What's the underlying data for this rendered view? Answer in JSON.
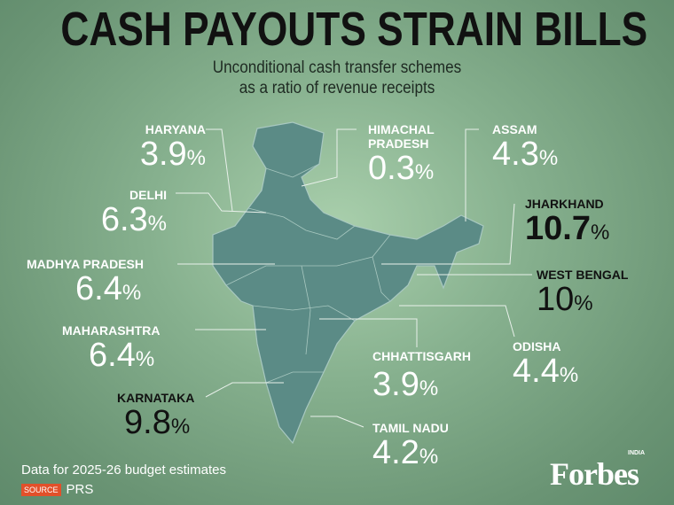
{
  "title": "CASH PAYOUTS STRAIN BILLS",
  "subtitle_line1": "Unconditional cash transfer schemes",
  "subtitle_line2": "as a ratio of revenue receipts",
  "states": [
    {
      "name": "HARYANA",
      "value": "3.9",
      "unit": "%"
    },
    {
      "name": "DELHI",
      "value": "6.3",
      "unit": "%"
    },
    {
      "name": "MADHYA PRADESH",
      "value": "6.4",
      "unit": "%"
    },
    {
      "name": "MAHARASHTRA",
      "value": "6.4",
      "unit": "%"
    },
    {
      "name": "KARNATAKA",
      "value": "9.8",
      "unit": "%"
    },
    {
      "name": "HIMACHAL PRADESH",
      "value": "0.3",
      "unit": "%"
    },
    {
      "name": "ASSAM",
      "value": "4.3",
      "unit": "%"
    },
    {
      "name": "JHARKHAND",
      "value": "10.7",
      "unit": "%"
    },
    {
      "name": "WEST BENGAL",
      "value": "10",
      "unit": "%"
    },
    {
      "name": "ODISHA",
      "value": "4.4",
      "unit": "%"
    },
    {
      "name": "CHHATTISGARH",
      "value": "3.9",
      "unit": "%"
    },
    {
      "name": "TAMIL NADU",
      "value": "4.2",
      "unit": "%"
    }
  ],
  "highlighted_states": [
    "JHARKHAND",
    "WEST BENGAL",
    "KARNATAKA"
  ],
  "footnote": "Data for 2025-26 budget estimates",
  "source_label": "SOURCE",
  "source": "PRS",
  "logo": "Forbes",
  "logo_tag": "INDIA",
  "colors": {
    "background": "#86b08e",
    "map": "#5b8b86",
    "highlight_text": "#111111",
    "source_badge": "#e2502a"
  }
}
